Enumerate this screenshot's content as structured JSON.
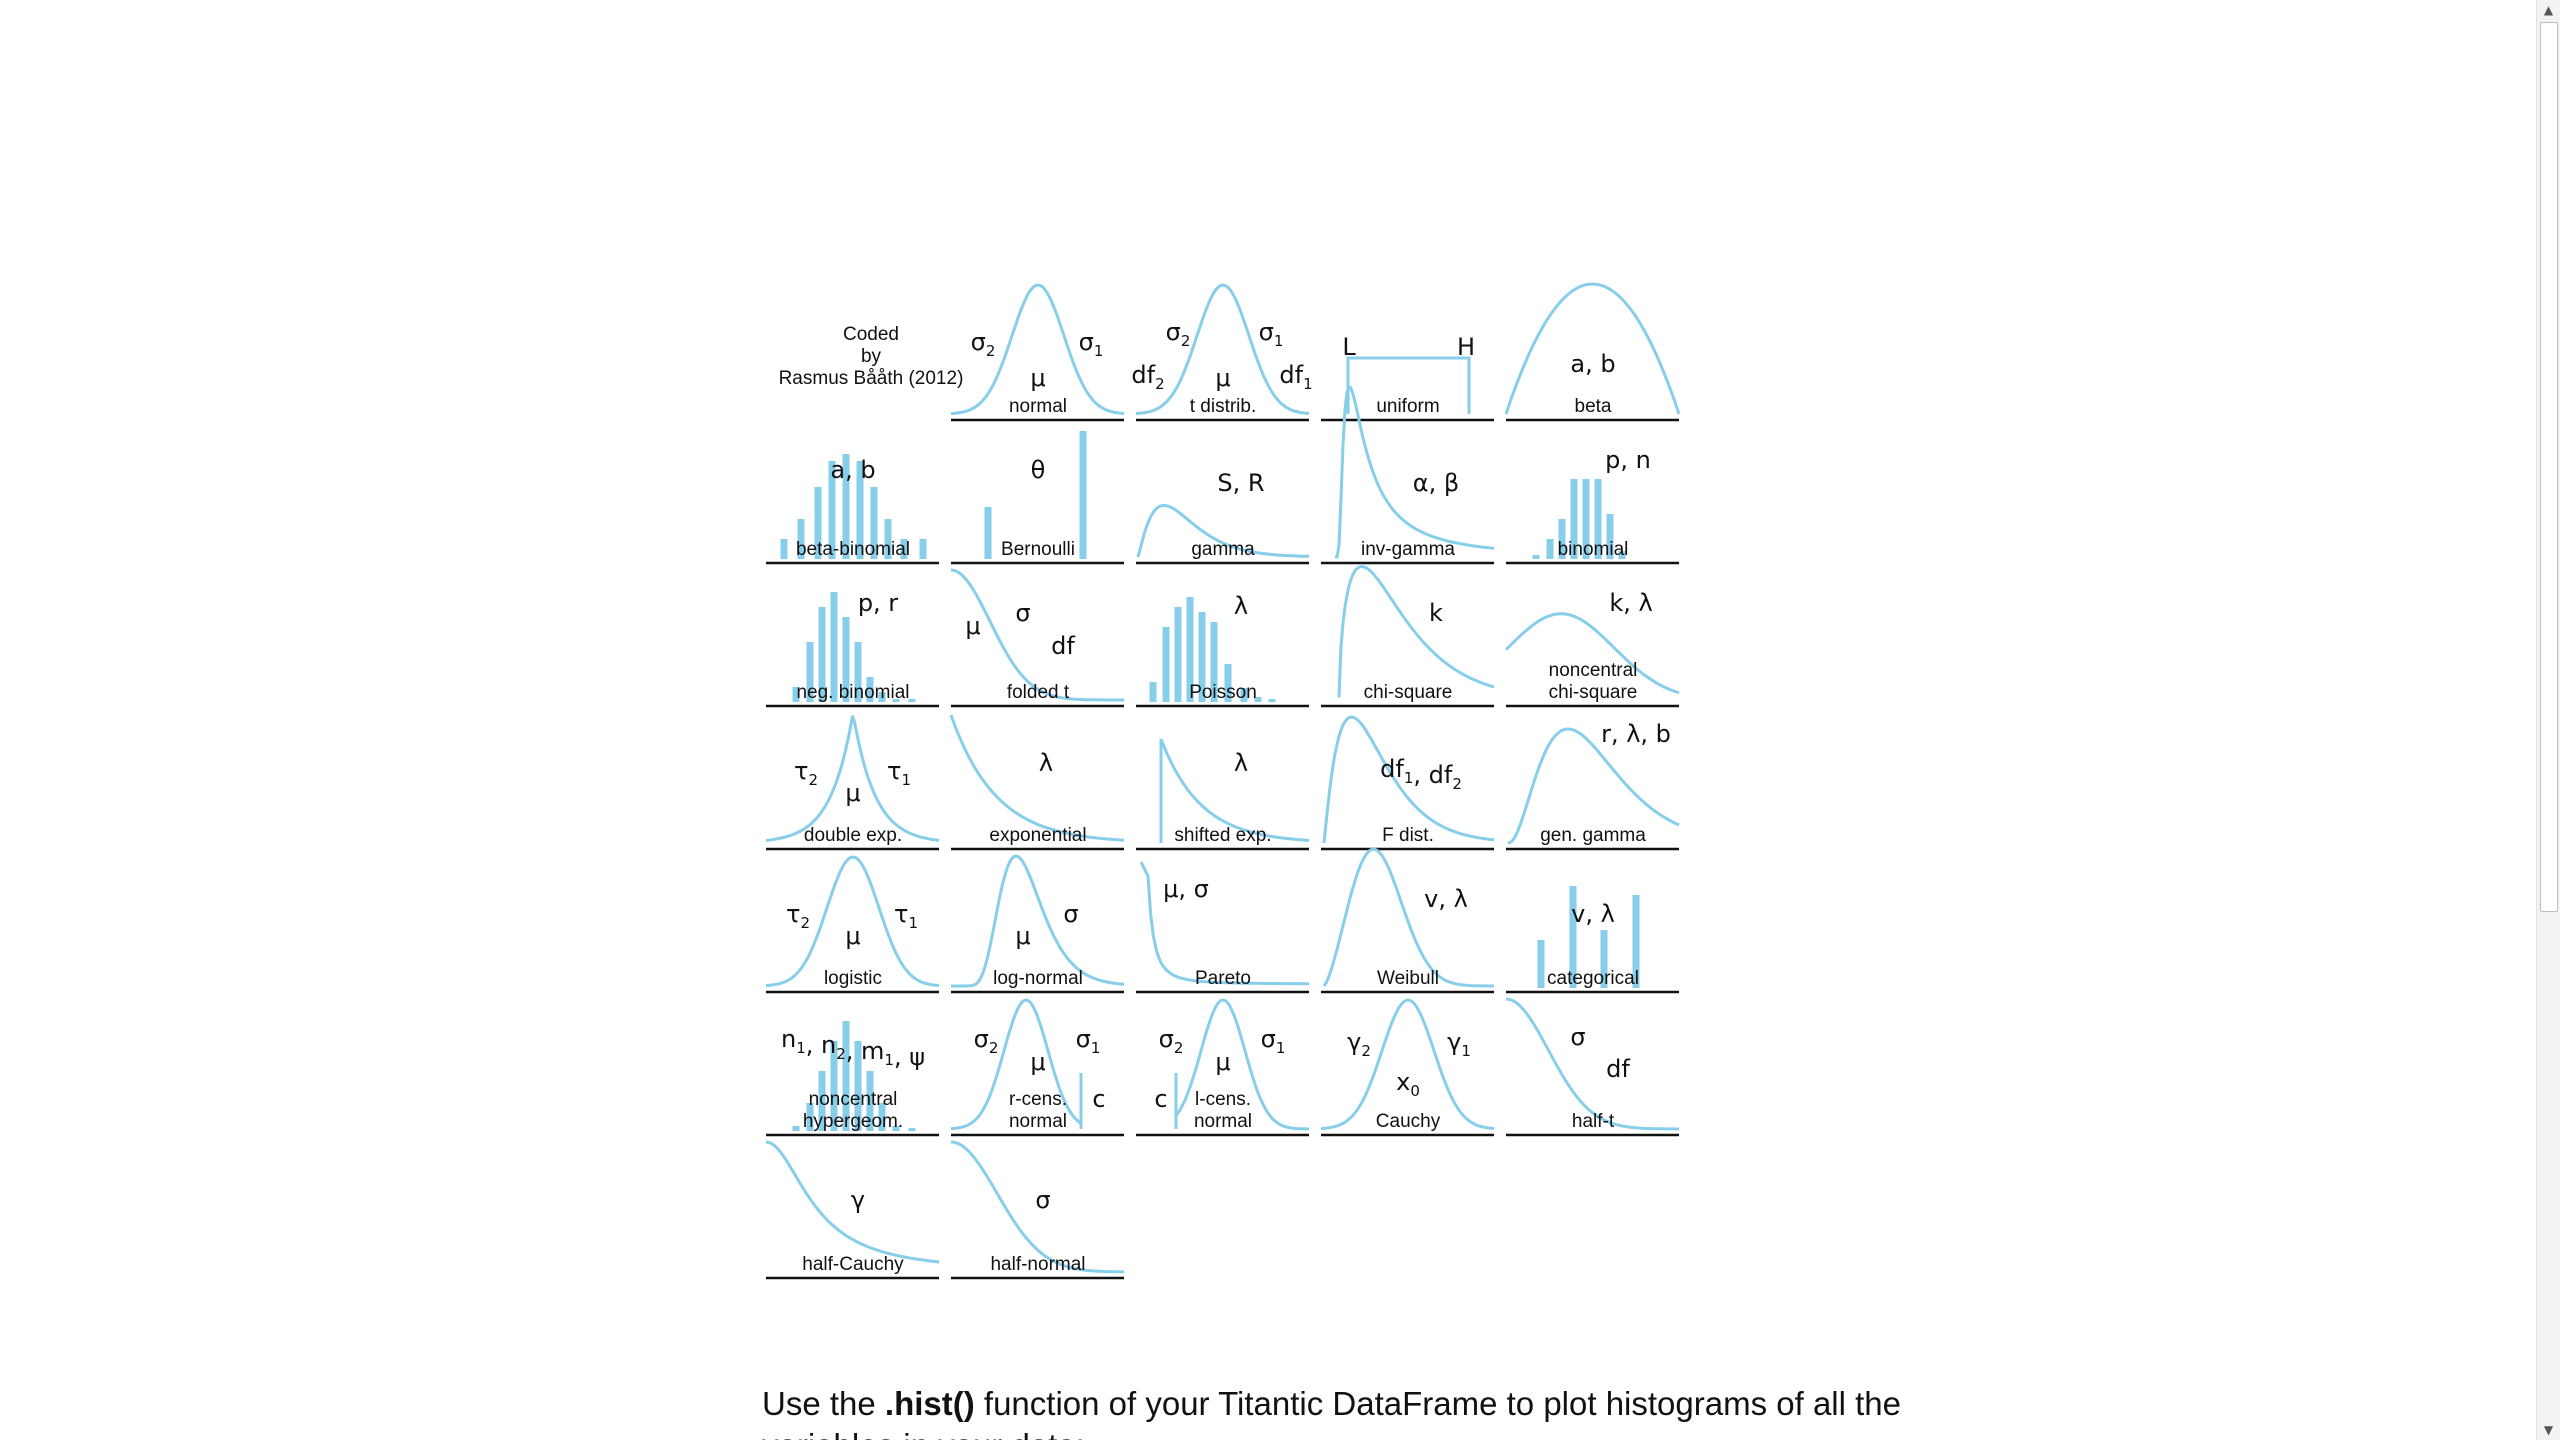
{
  "figure": {
    "credit": [
      "Coded",
      "by",
      "Rasmus Bååth (2012)"
    ],
    "curve_color": "#87ceeb",
    "panels": [
      {
        "row": 0,
        "col": 1,
        "shape": "bell",
        "name": [
          "normal"
        ],
        "params": [
          {
            "t": "σ",
            "sub": "2",
            "x": 32,
            "y": 70
          },
          {
            "t": "σ",
            "sub": "1",
            "x": 140,
            "y": 70
          },
          {
            "t": "μ",
            "x": 87,
            "y": 106
          }
        ]
      },
      {
        "row": 0,
        "col": 2,
        "shape": "bell",
        "name": [
          "t distrib."
        ],
        "params": [
          {
            "t": "σ",
            "sub": "2",
            "x": 42,
            "y": 60
          },
          {
            "t": "σ",
            "sub": "1",
            "x": 135,
            "y": 60
          },
          {
            "t": "df",
            "sub": "2",
            "x": 12,
            "y": 103
          },
          {
            "t": "df",
            "sub": "1",
            "x": 160,
            "y": 103
          },
          {
            "t": "μ",
            "x": 87,
            "y": 106
          }
        ]
      },
      {
        "row": 0,
        "col": 3,
        "shape": "uniform",
        "name": [
          "uniform"
        ],
        "params": [
          {
            "t": "L",
            "x": 28,
            "y": 75
          },
          {
            "t": "H",
            "x": 145,
            "y": 75
          }
        ]
      },
      {
        "row": 0,
        "col": 4,
        "shape": "beta",
        "name": [
          "beta"
        ],
        "params": [
          {
            "t": "a, b",
            "x": 87,
            "y": 92
          }
        ]
      },
      {
        "row": 1,
        "col": 0,
        "shape": "betabin",
        "name": [
          "beta-binomial"
        ],
        "params": [
          {
            "t": "a, b",
            "x": 87,
            "y": 55
          }
        ]
      },
      {
        "row": 1,
        "col": 1,
        "shape": "bernoulli",
        "name": [
          "Bernoulli"
        ],
        "params": [
          {
            "t": "θ",
            "x": 87,
            "y": 55
          }
        ]
      },
      {
        "row": 1,
        "col": 2,
        "shape": "decay",
        "name": [
          "gamma"
        ],
        "params": [
          {
            "t": "S, R",
            "x": 105,
            "y": 68
          }
        ]
      },
      {
        "row": 1,
        "col": 3,
        "shape": "invgamma",
        "name": [
          "inv-gamma"
        ],
        "params": [
          {
            "t": "α, β",
            "x": 115,
            "y": 68
          }
        ]
      },
      {
        "row": 1,
        "col": 4,
        "shape": "binomial",
        "name": [
          "binomial"
        ],
        "params": [
          {
            "t": "p, n",
            "x": 122,
            "y": 45
          }
        ]
      },
      {
        "row": 2,
        "col": 0,
        "shape": "negbin",
        "name": [
          "neg. binomial"
        ],
        "params": [
          {
            "t": "p, r",
            "x": 112,
            "y": 45
          }
        ]
      },
      {
        "row": 2,
        "col": 1,
        "shape": "foldedt",
        "name": [
          "folded t"
        ],
        "params": [
          {
            "t": "μ",
            "x": 22,
            "y": 68
          },
          {
            "t": "σ",
            "x": 72,
            "y": 55
          },
          {
            "t": "df",
            "x": 112,
            "y": 88
          }
        ]
      },
      {
        "row": 2,
        "col": 2,
        "shape": "poisson",
        "name": [
          "Poisson"
        ],
        "params": [
          {
            "t": "λ",
            "x": 105,
            "y": 48
          }
        ]
      },
      {
        "row": 2,
        "col": 3,
        "shape": "chisq",
        "name": [
          "chi-square"
        ],
        "params": [
          {
            "t": "k",
            "x": 115,
            "y": 55
          }
        ]
      },
      {
        "row": 2,
        "col": 4,
        "shape": "noncentral",
        "name": [
          "noncentral",
          "chi-square"
        ],
        "params": [
          {
            "t": "k, λ",
            "x": 125,
            "y": 45
          }
        ]
      },
      {
        "row": 3,
        "col": 0,
        "shape": "laplace",
        "name": [
          "double exp."
        ],
        "params": [
          {
            "t": "τ",
            "sub": "2",
            "x": 40,
            "y": 70
          },
          {
            "t": "τ",
            "sub": "1",
            "x": 133,
            "y": 70
          },
          {
            "t": "μ",
            "x": 87,
            "y": 92
          }
        ]
      },
      {
        "row": 3,
        "col": 1,
        "shape": "exponential",
        "name": [
          "exponential"
        ],
        "params": [
          {
            "t": "λ",
            "x": 95,
            "y": 62
          }
        ]
      },
      {
        "row": 3,
        "col": 2,
        "shape": "shifted",
        "name": [
          "shifted exp."
        ],
        "params": [
          {
            "t": "λ",
            "x": 105,
            "y": 62
          }
        ]
      },
      {
        "row": 3,
        "col": 3,
        "shape": "fdist",
        "name": [
          "F dist."
        ],
        "params": [
          {
            "t": "df",
            "sub": "1",
            "x": 100,
            "y": 68,
            "extra": ", df",
            "extrasub": "2"
          }
        ]
      },
      {
        "row": 3,
        "col": 4,
        "shape": "gengamma",
        "name": [
          "gen. gamma"
        ],
        "params": [
          {
            "t": "r, λ, b",
            "x": 130,
            "y": 33
          }
        ]
      },
      {
        "row": 4,
        "col": 0,
        "shape": "bell",
        "name": [
          "logistic"
        ],
        "params": [
          {
            "t": "τ",
            "sub": "2",
            "x": 32,
            "y": 70
          },
          {
            "t": "τ",
            "sub": "1",
            "x": 140,
            "y": 70
          },
          {
            "t": "μ",
            "x": 87,
            "y": 92
          }
        ]
      },
      {
        "row": 4,
        "col": 1,
        "shape": "lognormal",
        "name": [
          "log-normal"
        ],
        "params": [
          {
            "t": "σ",
            "x": 120,
            "y": 70
          },
          {
            "t": "μ",
            "x": 72,
            "y": 92
          }
        ]
      },
      {
        "row": 4,
        "col": 2,
        "shape": "pareto",
        "name": [
          "Pareto"
        ],
        "params": [
          {
            "t": "μ, σ",
            "x": 50,
            "y": 45
          }
        ]
      },
      {
        "row": 4,
        "col": 3,
        "shape": "weibull",
        "name": [
          "Weibull"
        ],
        "params": [
          {
            "t": "v, λ",
            "x": 125,
            "y": 55
          }
        ]
      },
      {
        "row": 4,
        "col": 4,
        "shape": "categorical",
        "name": [
          "categorical"
        ],
        "params": [
          {
            "t": "v, λ",
            "x": 87,
            "y": 70
          }
        ]
      },
      {
        "row": 5,
        "col": 0,
        "shape": "hypergeom",
        "name": [
          "noncentral",
          "hypergeom."
        ],
        "params": [
          {
            "t": "n",
            "sub": "1",
            "x": 87,
            "y": 52,
            "extra": ", n",
            "extrasub": "2",
            "extra2": ", m",
            "extra2sub": "1",
            "extra3": ", ψ"
          }
        ]
      },
      {
        "row": 5,
        "col": 1,
        "shape": "rcens",
        "name": [
          "r-cens.",
          "normal"
        ],
        "params": [
          {
            "t": "σ",
            "sub": "2",
            "x": 35,
            "y": 52
          },
          {
            "t": "σ",
            "sub": "1",
            "x": 137,
            "y": 52
          },
          {
            "t": "μ",
            "x": 87,
            "y": 75
          },
          {
            "t": "c",
            "x": 148,
            "y": 112
          }
        ]
      },
      {
        "row": 5,
        "col": 2,
        "shape": "lcens",
        "name": [
          "l-cens.",
          "normal"
        ],
        "params": [
          {
            "t": "σ",
            "sub": "2",
            "x": 35,
            "y": 52
          },
          {
            "t": "σ",
            "sub": "1",
            "x": 137,
            "y": 52
          },
          {
            "t": "μ",
            "x": 87,
            "y": 75
          },
          {
            "t": "c",
            "x": 25,
            "y": 112
          }
        ]
      },
      {
        "row": 5,
        "col": 3,
        "shape": "bell",
        "name": [
          "Cauchy"
        ],
        "params": [
          {
            "t": "γ",
            "sub": "2",
            "x": 38,
            "y": 55
          },
          {
            "t": "γ",
            "sub": "1",
            "x": 138,
            "y": 55
          },
          {
            "t": "x",
            "sub": "0",
            "x": 87,
            "y": 95
          }
        ]
      },
      {
        "row": 5,
        "col": 4,
        "shape": "halft",
        "name": [
          "half-t"
        ],
        "params": [
          {
            "t": "σ",
            "x": 72,
            "y": 50
          },
          {
            "t": "df",
            "x": 112,
            "y": 82
          }
        ]
      },
      {
        "row": 6,
        "col": 0,
        "shape": "halfcauchy",
        "name": [
          "half-Cauchy"
        ],
        "params": [
          {
            "t": "γ",
            "x": 92,
            "y": 70
          }
        ]
      },
      {
        "row": 6,
        "col": 1,
        "shape": "halfnormal",
        "name": [
          "half-normal"
        ],
        "params": [
          {
            "t": "σ",
            "x": 92,
            "y": 70
          }
        ]
      }
    ]
  },
  "paragraph": {
    "prefix": "Use the ",
    "code": ".hist()",
    "suffix": " function of your Titantic DataFrame to plot histograms of all the variables in your data:"
  },
  "scrollbar": {
    "up_arrow": "▲",
    "down_arrow": "▼"
  }
}
